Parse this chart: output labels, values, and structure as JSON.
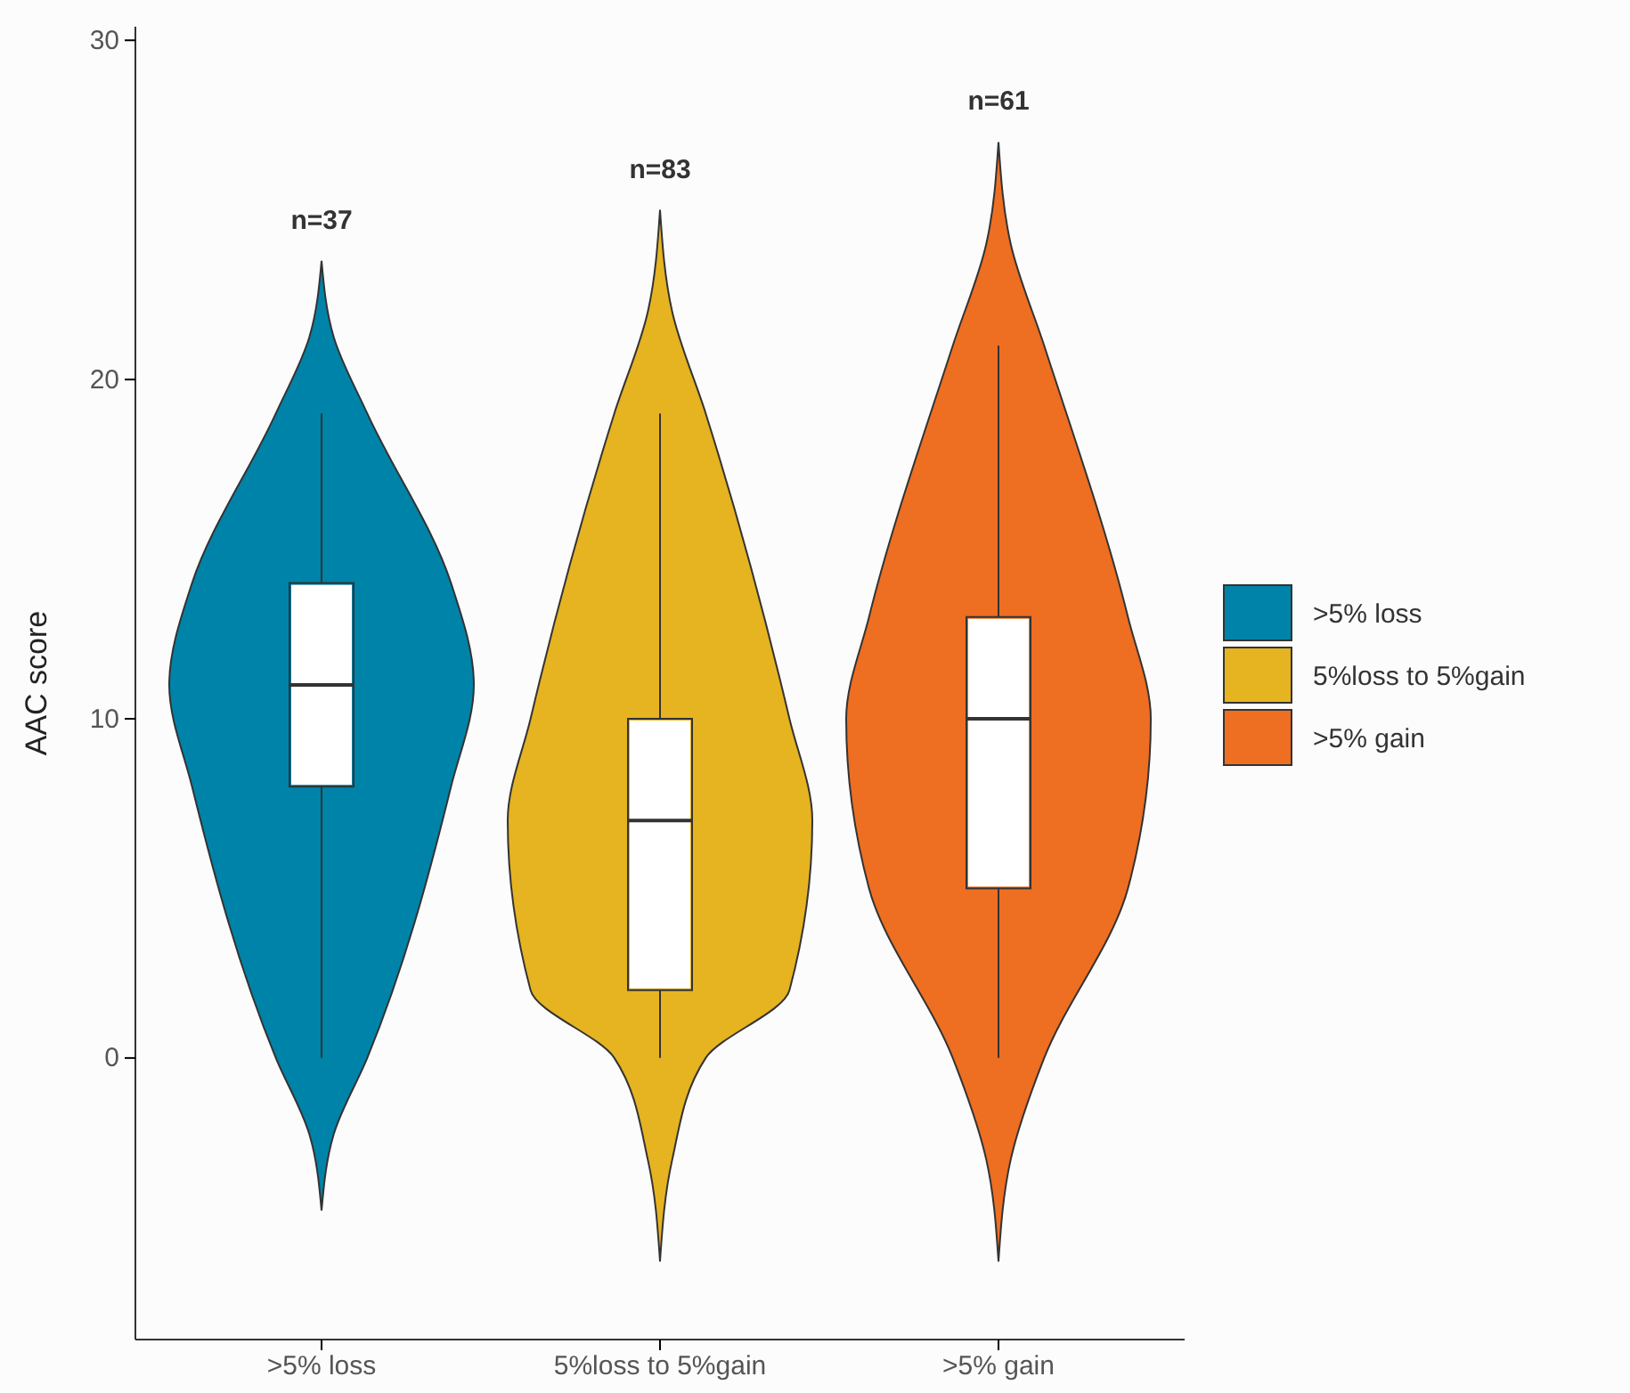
{
  "chart_data": {
    "type": "box",
    "ylabel": "AAC score",
    "categories": [
      ">5% loss",
      "5%loss to 5%gain",
      ">5% gain"
    ],
    "series": [
      {
        "name": ">5% loss",
        "color": "#0083a8",
        "boxes": [
          {
            "low": 0,
            "q1": 8,
            "median": 11,
            "q3": 14,
            "high": 19
          },
          null,
          null
        ]
      },
      {
        "name": "5%loss to 5%gain",
        "color": "#e6b321",
        "boxes": [
          null,
          {
            "low": 0,
            "q1": 2,
            "median": 7,
            "q3": 10,
            "high": 19
          },
          null
        ]
      },
      {
        "name": ">5% gain",
        "color": "#ee6e22",
        "boxes": [
          null,
          null,
          {
            "low": 0,
            "q1": 5,
            "median": 10,
            "q3": 13,
            "high": 21
          }
        ]
      }
    ],
    "ylim": [
      -8.3,
      30.4
    ],
    "yticks": [
      0,
      10,
      20,
      30
    ],
    "annotations": [
      "n=37",
      "n=83",
      "n=61"
    ],
    "legend": "right",
    "grid": false
  }
}
